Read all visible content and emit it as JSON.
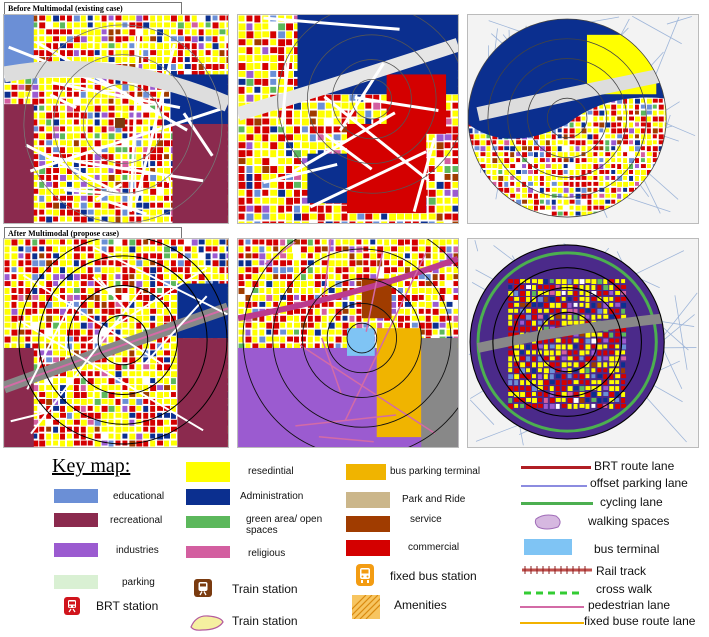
{
  "captions": {
    "before": "Before Multimodal (existing case)",
    "after": "After Multimodal (propose  case)"
  },
  "key_map": {
    "title": "Key map:",
    "items": [
      {
        "id": "educational",
        "label": "educational",
        "color": "#6b8fd6",
        "kind": "fill"
      },
      {
        "id": "recreational",
        "label": "recreational",
        "color": "#8b2a4e",
        "kind": "fill"
      },
      {
        "id": "industries",
        "label": "industries",
        "color": "#9b5bd0",
        "kind": "fill"
      },
      {
        "id": "parking",
        "label": "parking",
        "color": "#d9f0d3",
        "kind": "fill"
      },
      {
        "id": "brt-station",
        "label": "BRT station",
        "color": "#d0141c",
        "kind": "icon-brt"
      },
      {
        "id": "residential",
        "label": "resedintial",
        "color": "#ffff00",
        "kind": "fill"
      },
      {
        "id": "administration",
        "label": "Administration",
        "color": "#0b2f8f",
        "kind": "fill"
      },
      {
        "id": "green-area",
        "label": "green area/ open spaces",
        "color": "#5cb85c",
        "kind": "fill"
      },
      {
        "id": "religious",
        "label": "religious",
        "color": "#d35fa0",
        "kind": "fill"
      },
      {
        "id": "train-station-icon",
        "label": "Train station",
        "color": "#7a3b10",
        "kind": "icon-train"
      },
      {
        "id": "train-station-area",
        "label": "Train station",
        "color": "#f5f0a0",
        "kind": "blob"
      },
      {
        "id": "bus-parking-terminal",
        "label": "bus parking terminal",
        "color": "#f0b400",
        "kind": "fill"
      },
      {
        "id": "park-and-ride",
        "label": "Park and Ride",
        "color": "#cbb68a",
        "kind": "fill"
      },
      {
        "id": "service",
        "label": "service",
        "color": "#a03c00",
        "kind": "fill"
      },
      {
        "id": "commercial",
        "label": "commercial",
        "color": "#d40000",
        "kind": "fill"
      },
      {
        "id": "fixed-bus-station",
        "label": "fixed bus station",
        "color": "#f39c12",
        "kind": "icon-bus"
      },
      {
        "id": "amenities",
        "label": "Amenities",
        "color": "#f0a030",
        "kind": "hatch"
      },
      {
        "id": "brt-route-lane",
        "label": "BRT route lane",
        "color": "#b01e24",
        "kind": "line"
      },
      {
        "id": "offset-parking-lane",
        "label": "offset parking  lane",
        "color": "#8c8ce0",
        "kind": "line"
      },
      {
        "id": "cycling-lane",
        "label": "cycling  lane",
        "color": "#4caf50",
        "kind": "line"
      },
      {
        "id": "walking-spaces",
        "label": "walking spaces",
        "color": "#d6b8e0",
        "kind": "blob"
      },
      {
        "id": "bus-terminal",
        "label": "bus terminal",
        "color": "#7fc4f4",
        "kind": "fill"
      },
      {
        "id": "rail-track",
        "label": "Rail track",
        "color": "#c0504d",
        "kind": "rail"
      },
      {
        "id": "cross-walk",
        "label": "cross walk",
        "color": "#33cc33",
        "kind": "dash"
      },
      {
        "id": "pedestrian-lane",
        "label": "pedestrian lane",
        "color": "#d36ba6",
        "kind": "line"
      },
      {
        "id": "fixed-bus-route-lane",
        "label": "fixed buse route lane",
        "color": "#f2b200",
        "kind": "line"
      }
    ]
  }
}
